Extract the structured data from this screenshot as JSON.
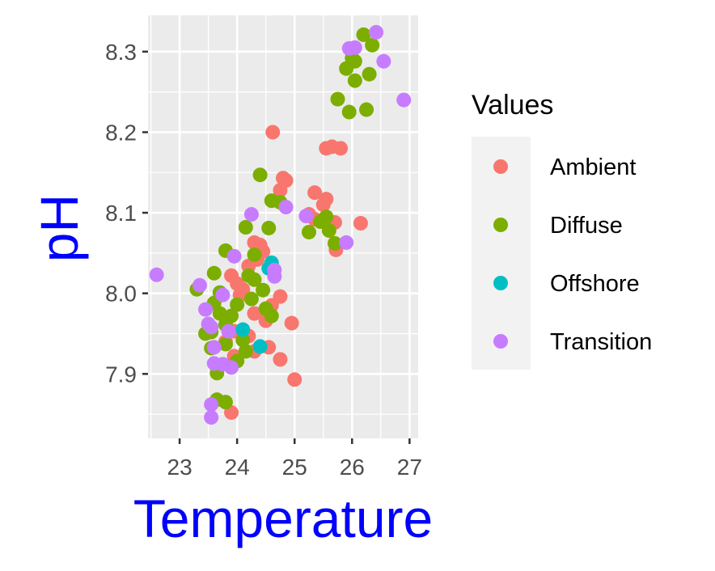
{
  "chart_data": {
    "type": "scatter",
    "title": "",
    "xlabel": "Temperature",
    "ylabel": "pH",
    "xlim": [
      22.45,
      27.15
    ],
    "ylim": [
      7.82,
      8.345
    ],
    "xticks": [
      23,
      24,
      25,
      26,
      27
    ],
    "yticks": [
      7.9,
      8.0,
      8.1,
      8.2,
      8.3
    ],
    "xtick_labels": [
      "23",
      "24",
      "25",
      "26",
      "27"
    ],
    "ytick_labels": [
      "7.9",
      "8.0",
      "8.1",
      "8.2",
      "8.3"
    ],
    "grid": true,
    "legend": {
      "title": "Values",
      "position": "right"
    },
    "colors": {
      "panel_bg": "#ebebeb",
      "grid": "#ffffff",
      "legend_bg": "#f2f2f2",
      "axis_title": "#0000ff"
    },
    "series": [
      {
        "name": "Ambient",
        "color": "#F8766D",
        "points": [
          [
            24.62,
            8.2
          ],
          [
            25.55,
            8.18
          ],
          [
            25.65,
            8.182
          ],
          [
            25.8,
            8.18
          ],
          [
            24.8,
            8.143
          ],
          [
            24.85,
            8.14
          ],
          [
            24.75,
            8.128
          ],
          [
            25.35,
            8.125
          ],
          [
            25.55,
            8.117
          ],
          [
            25.5,
            8.11
          ],
          [
            25.25,
            8.098
          ],
          [
            25.35,
            8.092
          ],
          [
            25.7,
            8.088
          ],
          [
            26.15,
            8.087
          ],
          [
            25.72,
            8.054
          ],
          [
            24.3,
            8.063
          ],
          [
            24.4,
            8.06
          ],
          [
            24.45,
            8.052
          ],
          [
            24.35,
            8.042
          ],
          [
            24.2,
            8.034
          ],
          [
            23.9,
            8.022
          ],
          [
            24.0,
            8.012
          ],
          [
            24.1,
            8.005
          ],
          [
            24.05,
            7.998
          ],
          [
            24.75,
            7.996
          ],
          [
            24.6,
            7.985
          ],
          [
            24.3,
            7.975
          ],
          [
            24.5,
            7.966
          ],
          [
            24.95,
            7.963
          ],
          [
            23.95,
            7.953
          ],
          [
            24.2,
            7.947
          ],
          [
            23.8,
            7.94
          ],
          [
            24.55,
            7.933
          ],
          [
            24.3,
            7.928
          ],
          [
            23.95,
            7.922
          ],
          [
            24.75,
            7.918
          ],
          [
            25.0,
            7.893
          ],
          [
            23.9,
            7.852
          ]
        ]
      },
      {
        "name": "Diffuse",
        "color": "#7CAE00",
        "points": [
          [
            26.2,
            8.321
          ],
          [
            26.35,
            8.308
          ],
          [
            26.0,
            8.292
          ],
          [
            26.05,
            8.288
          ],
          [
            25.9,
            8.279
          ],
          [
            26.3,
            8.272
          ],
          [
            26.05,
            8.264
          ],
          [
            25.75,
            8.241
          ],
          [
            26.25,
            8.228
          ],
          [
            25.95,
            8.225
          ],
          [
            24.4,
            8.147
          ],
          [
            24.6,
            8.115
          ],
          [
            24.75,
            8.113
          ],
          [
            25.55,
            8.095
          ],
          [
            25.45,
            8.089
          ],
          [
            25.6,
            8.078
          ],
          [
            25.25,
            8.076
          ],
          [
            24.55,
            8.081
          ],
          [
            24.15,
            8.082
          ],
          [
            25.7,
            8.062
          ],
          [
            23.8,
            8.053
          ],
          [
            24.3,
            8.048
          ],
          [
            23.6,
            8.025
          ],
          [
            24.2,
            8.022
          ],
          [
            24.3,
            8.017
          ],
          [
            24.45,
            8.004
          ],
          [
            23.3,
            8.005
          ],
          [
            23.7,
            8.001
          ],
          [
            24.25,
            7.993
          ],
          [
            23.6,
            7.988
          ],
          [
            24.0,
            7.986
          ],
          [
            24.5,
            7.981
          ],
          [
            23.7,
            7.975
          ],
          [
            23.9,
            7.972
          ],
          [
            24.6,
            7.972
          ],
          [
            23.8,
            7.961
          ],
          [
            23.55,
            7.952
          ],
          [
            23.45,
            7.95
          ],
          [
            24.1,
            7.942
          ],
          [
            23.8,
            7.937
          ],
          [
            23.55,
            7.932
          ],
          [
            24.15,
            7.928
          ],
          [
            24.0,
            7.916
          ],
          [
            23.65,
            7.91
          ],
          [
            23.65,
            7.901
          ],
          [
            23.65,
            7.868
          ],
          [
            23.8,
            7.865
          ]
        ]
      },
      {
        "name": "Offshore",
        "color": "#00BFC4",
        "points": [
          [
            24.6,
            8.038
          ],
          [
            24.55,
            8.031
          ],
          [
            24.1,
            7.955
          ],
          [
            24.4,
            7.934
          ]
        ]
      },
      {
        "name": "Transition",
        "color": "#C77CFF",
        "points": [
          [
            26.42,
            8.324
          ],
          [
            26.05,
            8.305
          ],
          [
            25.95,
            8.304
          ],
          [
            26.55,
            8.288
          ],
          [
            26.9,
            8.24
          ],
          [
            24.25,
            8.098
          ],
          [
            25.2,
            8.096
          ],
          [
            24.85,
            8.107
          ],
          [
            25.9,
            8.063
          ],
          [
            24.65,
            8.029
          ],
          [
            24.65,
            8.021
          ],
          [
            22.6,
            8.023
          ],
          [
            23.35,
            8.01
          ],
          [
            23.45,
            7.98
          ],
          [
            23.75,
            7.998
          ],
          [
            23.5,
            7.962
          ],
          [
            23.55,
            7.958
          ],
          [
            23.85,
            7.953
          ],
          [
            23.6,
            7.933
          ],
          [
            23.6,
            7.913
          ],
          [
            23.75,
            7.912
          ],
          [
            23.9,
            7.908
          ],
          [
            23.55,
            7.862
          ],
          [
            23.55,
            7.846
          ],
          [
            23.95,
            8.046
          ]
        ]
      }
    ]
  }
}
